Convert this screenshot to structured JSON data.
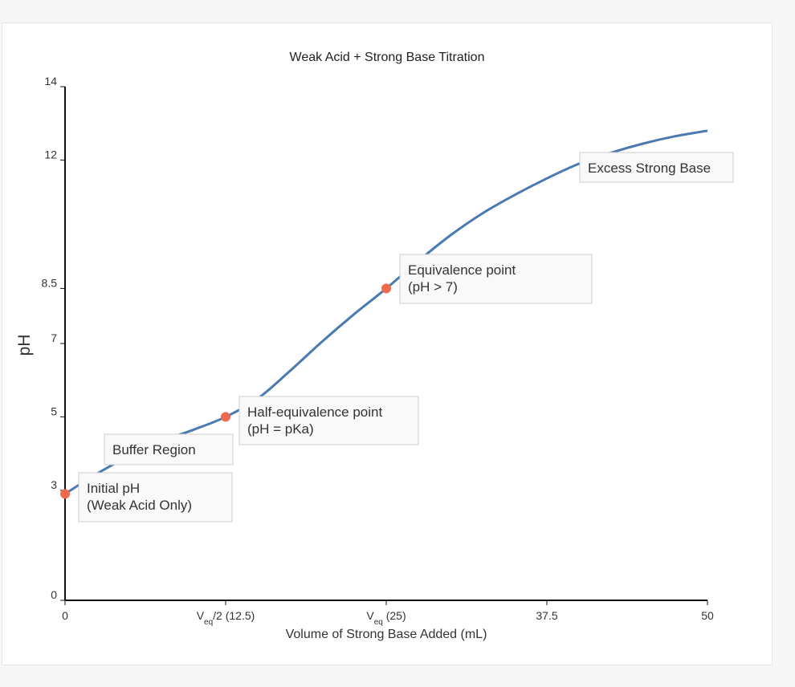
{
  "chart_data": {
    "type": "line",
    "title": "Weak Acid + Strong Base Titration",
    "xlabel": "Volume of Strong Base Added (mL)",
    "ylabel": "pH",
    "xlim": [
      0,
      50
    ],
    "ylim": [
      0,
      14
    ],
    "grid": false,
    "x_ticks": [
      {
        "value": 0,
        "label": "0"
      },
      {
        "value": 12.5,
        "base": "V",
        "sub": "eq",
        "rest": "/2 (12.5)"
      },
      {
        "value": 25,
        "base": "V",
        "sub": "eq",
        "rest": " (25)"
      },
      {
        "value": 37.5,
        "label": "37.5"
      },
      {
        "value": 50,
        "label": "50"
      }
    ],
    "y_ticks": [
      {
        "value": 0,
        "label": "0"
      },
      {
        "value": 3,
        "label": "3"
      },
      {
        "value": 5,
        "label": "5"
      },
      {
        "value": 7,
        "label": "7"
      },
      {
        "value": 8.5,
        "label": "8.5"
      },
      {
        "value": 12,
        "label": "12"
      },
      {
        "value": 14,
        "label": "14"
      }
    ],
    "series": [
      {
        "color": "#4a7ab0",
        "x": [
          0,
          2,
          4,
          6,
          8,
          10,
          12.5,
          15,
          17.5,
          20,
          22.5,
          25,
          27.5,
          30,
          32.5,
          35,
          37.5,
          40,
          42.5,
          45,
          47.5,
          50
        ],
        "y": [
          2.9,
          3.35,
          3.75,
          4.1,
          4.4,
          4.65,
          5.0,
          5.5,
          6.25,
          7.05,
          7.8,
          8.5,
          9.25,
          9.95,
          10.55,
          11.05,
          11.5,
          11.9,
          12.2,
          12.45,
          12.65,
          12.8
        ]
      }
    ],
    "points": [
      {
        "x": 0,
        "y": 2.9,
        "color": "#ee6a4e"
      },
      {
        "x": 12.5,
        "y": 5.0,
        "color": "#ee6a4e"
      },
      {
        "x": 25,
        "y": 8.5,
        "color": "#ee6a4e"
      }
    ],
    "annotations": [
      {
        "lines": [
          "Initial pH",
          "(Weak Acid Only)"
        ]
      },
      {
        "lines": [
          "Buffer Region"
        ]
      },
      {
        "lines": [
          "Half-equivalence point",
          "(pH = pKa)"
        ]
      },
      {
        "lines": [
          "Equivalence point",
          "(pH > 7)"
        ]
      },
      {
        "lines": [
          "Excess Strong Base"
        ]
      }
    ]
  }
}
